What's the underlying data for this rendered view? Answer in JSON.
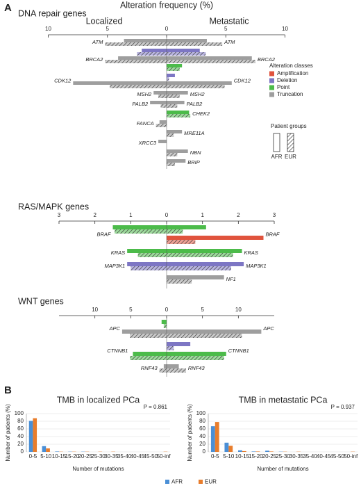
{
  "panels": [
    "A",
    "B"
  ],
  "chart_data": [
    {
      "type": "butterfly",
      "title": "DNA repair genes",
      "xlabel": "Alteration frequency (%)",
      "left_label": "Localized",
      "right_label": "Metastatic",
      "xlim": [
        0,
        10
      ],
      "xticks": [
        0,
        5,
        10
      ],
      "classes_title": "Alteration classes",
      "classes": [
        {
          "name": "Amplification",
          "color": "#e0533d"
        },
        {
          "name": "Deletion",
          "color": "#7d76c4"
        },
        {
          "name": "Point",
          "color": "#4cbb4a"
        },
        {
          "name": "Truncation",
          "color": "#9e9e9e"
        }
      ],
      "groups_title": "Patient groups",
      "groups": [
        "AFR",
        "EUR"
      ],
      "genes": [
        {
          "name": "ATM",
          "bars": [
            {
              "color": "#9e9e9e",
              "localized": [
                3.6,
                5.2
              ],
              "metastatic": [
                3.4,
                4.7
              ]
            }
          ]
        },
        {
          "name": "BRCA2",
          "bars": [
            {
              "color": "#7d76c4",
              "localized": [
                2.1,
                2.5
              ],
              "metastatic": [
                2.8,
                3.3
              ]
            },
            {
              "color": "#9e9e9e",
              "localized": [
                4.1,
                5.2
              ],
              "metastatic": [
                7.2,
                7.5
              ]
            },
            {
              "color": "#4cbb4a",
              "localized": null,
              "metastatic": [
                1.3,
                1.1
              ]
            }
          ]
        },
        {
          "name": "CDK12",
          "bars": [
            {
              "color": "#7d76c4",
              "localized": null,
              "metastatic": [
                0.7,
                0.2
              ]
            },
            {
              "color": "#9e9e9e",
              "localized": [
                7.9,
                4.8
              ],
              "metastatic": [
                5.5,
                4.9
              ]
            }
          ]
        },
        {
          "name": "MSH2",
          "bars": [
            {
              "color": "#9e9e9e",
              "localized": [
                1.1,
                0.7
              ],
              "metastatic": [
                1.8,
                1.1
              ]
            }
          ]
        },
        {
          "name": "PALB2",
          "bars": [
            {
              "color": "#9e9e9e",
              "localized": [
                1.4,
                0.5
              ],
              "metastatic": [
                1.5,
                0.9
              ]
            }
          ]
        },
        {
          "name": "CHEK2",
          "bars": [
            {
              "color": "#4cbb4a",
              "localized": null,
              "metastatic": [
                1.9,
                2.0
              ]
            }
          ]
        },
        {
          "name": "FANCA",
          "bars": [
            {
              "color": "#9e9e9e",
              "localized": [
                0.6,
                0.9
              ],
              "metastatic": null
            }
          ]
        },
        {
          "name": "MRE11A",
          "bars": [
            {
              "color": "#9e9e9e",
              "localized": null,
              "metastatic": [
                1.3,
                0.6
              ]
            }
          ]
        },
        {
          "name": "XRCC3",
          "bars": [
            {
              "color": "#9e9e9e",
              "localized": [
                0.7,
                null
              ],
              "metastatic": null
            }
          ]
        },
        {
          "name": "NBN",
          "bars": [
            {
              "color": "#9e9e9e",
              "localized": null,
              "metastatic": [
                1.8,
                0.9
              ]
            }
          ]
        },
        {
          "name": "BRIP",
          "bars": [
            {
              "color": "#9e9e9e",
              "localized": null,
              "metastatic": [
                1.6,
                0.7
              ]
            }
          ]
        }
      ]
    },
    {
      "type": "butterfly",
      "title": "RAS/MAPK genes",
      "xlim": [
        0,
        3
      ],
      "xticks": [
        0,
        1,
        2,
        3
      ],
      "genes": [
        {
          "name": "BRAF",
          "bars": [
            {
              "color": "#4cbb4a",
              "localized": [
                1.5,
                1.45
              ],
              "metastatic": [
                1.1,
                0.45
              ]
            },
            {
              "color": "#e0533d",
              "localized": null,
              "metastatic": [
                2.7,
                0.8
              ]
            }
          ]
        },
        {
          "name": "KRAS",
          "bars": [
            {
              "color": "#4cbb4a",
              "localized": [
                1.1,
                0.8
              ],
              "metastatic": [
                2.1,
                1.85
              ]
            }
          ]
        },
        {
          "name": "MAP3K1",
          "bars": [
            {
              "color": "#7d76c4",
              "localized": [
                1.1,
                1.0
              ],
              "metastatic": [
                2.15,
                1.8
              ]
            }
          ]
        },
        {
          "name": "NF1",
          "bars": [
            {
              "color": "#9e9e9e",
              "localized": null,
              "metastatic": [
                1.6,
                0.7
              ]
            }
          ]
        }
      ]
    },
    {
      "type": "butterfly",
      "title": "WNT genes",
      "xlim": [
        0,
        15
      ],
      "xticks": [
        0,
        5,
        10
      ],
      "genes": [
        {
          "name": "APC",
          "bars": [
            {
              "color": "#4cbb4a",
              "localized": [
                0.7,
                0.4
              ],
              "metastatic": null
            },
            {
              "color": "#9e9e9e",
              "localized": [
                6.2,
                5.1
              ],
              "metastatic": [
                13.2,
                10.5
              ]
            }
          ]
        },
        {
          "name": "CTNNB1",
          "bars": [
            {
              "color": "#7d76c4",
              "localized": null,
              "metastatic": [
                3.3,
                1.0
              ]
            },
            {
              "color": "#4cbb4a",
              "localized": [
                4.7,
                5.1
              ],
              "metastatic": [
                8.3,
                8.0
              ]
            }
          ]
        },
        {
          "name": "RNF43",
          "bars": [
            {
              "color": "#9e9e9e",
              "localized": [
                0.4,
                1.0
              ],
              "metastatic": [
                1.7,
                2.7
              ]
            }
          ]
        }
      ]
    },
    {
      "type": "bar",
      "title": "TMB in localized PCa",
      "annotation": "P = 0.861",
      "xlabel": "Number of mutations",
      "ylabel": "Number of patients (%)",
      "categories": [
        "0-5",
        "5-10",
        "10-15",
        "15-20",
        "20-25",
        "25-30",
        "30-35",
        "35-40",
        "40-45",
        "45-50",
        "50-inf"
      ],
      "ylim": [
        0,
        100
      ],
      "yticks": [
        0,
        20,
        40,
        60,
        80,
        100
      ],
      "grid": true,
      "series": [
        {
          "name": "AFR",
          "color": "#4a8fd6",
          "values": [
            81,
            15,
            1,
            0.5,
            0.5,
            0,
            0,
            0,
            0,
            0,
            0
          ]
        },
        {
          "name": "EUR",
          "color": "#e87d2c",
          "values": [
            88,
            9,
            0.5,
            0.5,
            0.5,
            0.5,
            0.5,
            0,
            0,
            0,
            0.5
          ]
        }
      ]
    },
    {
      "type": "bar",
      "title": "TMB in metastatic PCa",
      "annotation": "P = 0.937",
      "xlabel": "Number of mutations",
      "ylabel": "Number of patients (%)",
      "categories": [
        "0-5",
        "5-10",
        "10-15",
        "15-20",
        "20-25",
        "25-30",
        "30-35",
        "35-40",
        "40-45",
        "45-50",
        "50-inf"
      ],
      "ylim": [
        0,
        100
      ],
      "yticks": [
        0,
        20,
        40,
        60,
        80,
        100
      ],
      "grid": true,
      "series": [
        {
          "color": "#4a8fd6",
          "values": [
            67,
            24,
            4,
            1,
            3,
            0.5,
            0,
            0,
            0,
            0,
            0
          ]
        },
        {
          "color": "#e87d2c",
          "values": [
            78,
            16,
            2,
            1,
            1,
            0.5,
            0.5,
            0,
            0,
            0,
            0.5
          ]
        }
      ]
    }
  ]
}
